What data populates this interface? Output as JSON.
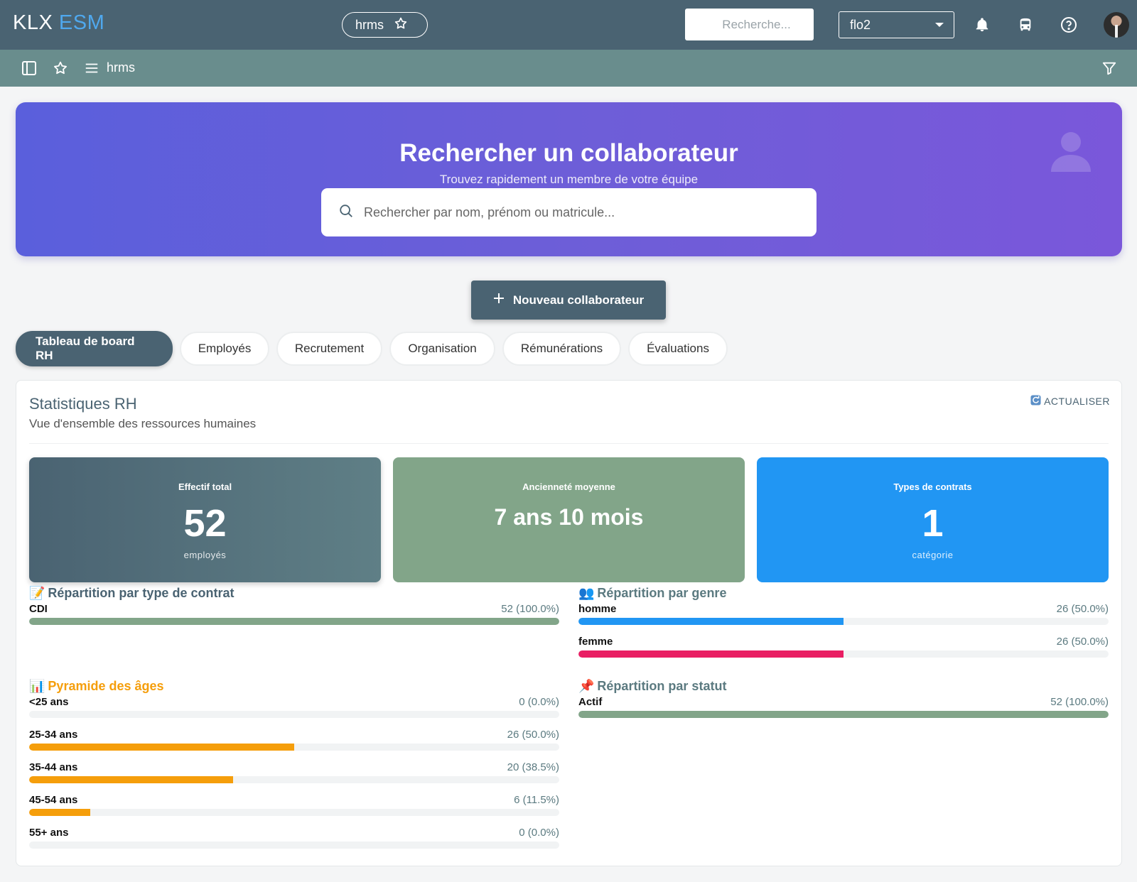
{
  "topbar": {
    "logo_primary": "KLX",
    "logo_secondary": "ESM",
    "app_chip_label": "hrms",
    "search_placeholder": "Recherche...",
    "tenant": "flo2"
  },
  "subbar": {
    "label": "hrms"
  },
  "hero": {
    "title": "Rechercher un collaborateur",
    "subtitle": "Trouvez rapidement un membre de votre équipe",
    "search_placeholder": "Rechercher par nom, prénom ou matricule..."
  },
  "new_button_label": "Nouveau collaborateur",
  "tabs": [
    {
      "label": "Tableau de board RH",
      "active": true
    },
    {
      "label": "Employés"
    },
    {
      "label": "Recrutement"
    },
    {
      "label": "Organisation"
    },
    {
      "label": "Rémunérations"
    },
    {
      "label": "Évaluations"
    }
  ],
  "stats": {
    "title": "Statistiques RH",
    "subtitle": "Vue d'ensemble des ressources humaines",
    "refresh_label": "ACTUALISER",
    "cards": {
      "total": {
        "label": "Effectif total",
        "value": "52",
        "unit": "employés"
      },
      "seniority": {
        "label": "Ancienneté moyenne",
        "value": "7 ans 10 mois"
      },
      "contracts": {
        "label": "Types de contrats",
        "value": "1",
        "unit": "catégorie"
      }
    },
    "contract_distribution": {
      "title": "Répartition par type de contrat",
      "icon": "memo-emoji",
      "rows": [
        {
          "label": "CDI",
          "value": "52 (100.0%)",
          "fraction": 1.0,
          "color": "#82a589"
        }
      ]
    },
    "gender_distribution": {
      "title": "Répartition par genre",
      "icon": "people-emoji",
      "rows": [
        {
          "label": "homme",
          "value": "26 (50.0%)",
          "fraction": 0.5,
          "color": "#2196f3"
        },
        {
          "label": "femme",
          "value": "26 (50.0%)",
          "fraction": 0.5,
          "color": "#e91e63"
        }
      ]
    },
    "age_pyramid": {
      "title": "Pyramide des âges",
      "icon": "bar-chart-emoji",
      "rows": [
        {
          "label": "<25 ans",
          "value": "0 (0.0%)",
          "fraction": 0.0
        },
        {
          "label": "25-34 ans",
          "value": "26 (50.0%)",
          "fraction": 0.5
        },
        {
          "label": "35-44 ans",
          "value": "20 (38.5%)",
          "fraction": 0.385
        },
        {
          "label": "45-54 ans",
          "value": "6 (11.5%)",
          "fraction": 0.115
        },
        {
          "label": "55+ ans",
          "value": "0 (0.0%)",
          "fraction": 0.0
        }
      ]
    },
    "status_distribution": {
      "title": "Répartition par statut",
      "icon": "pushpin-emoji",
      "rows": [
        {
          "label": "Actif",
          "value": "52 (100.0%)",
          "fraction": 1.0,
          "color": "#82a589"
        }
      ]
    }
  },
  "colors": {
    "primary": "#4a6372",
    "subbar": "#698d8d",
    "accent_blue": "#2196f3",
    "accent_green": "#82a589",
    "accent_pink": "#e91e63",
    "accent_orange": "#f59e0b"
  }
}
